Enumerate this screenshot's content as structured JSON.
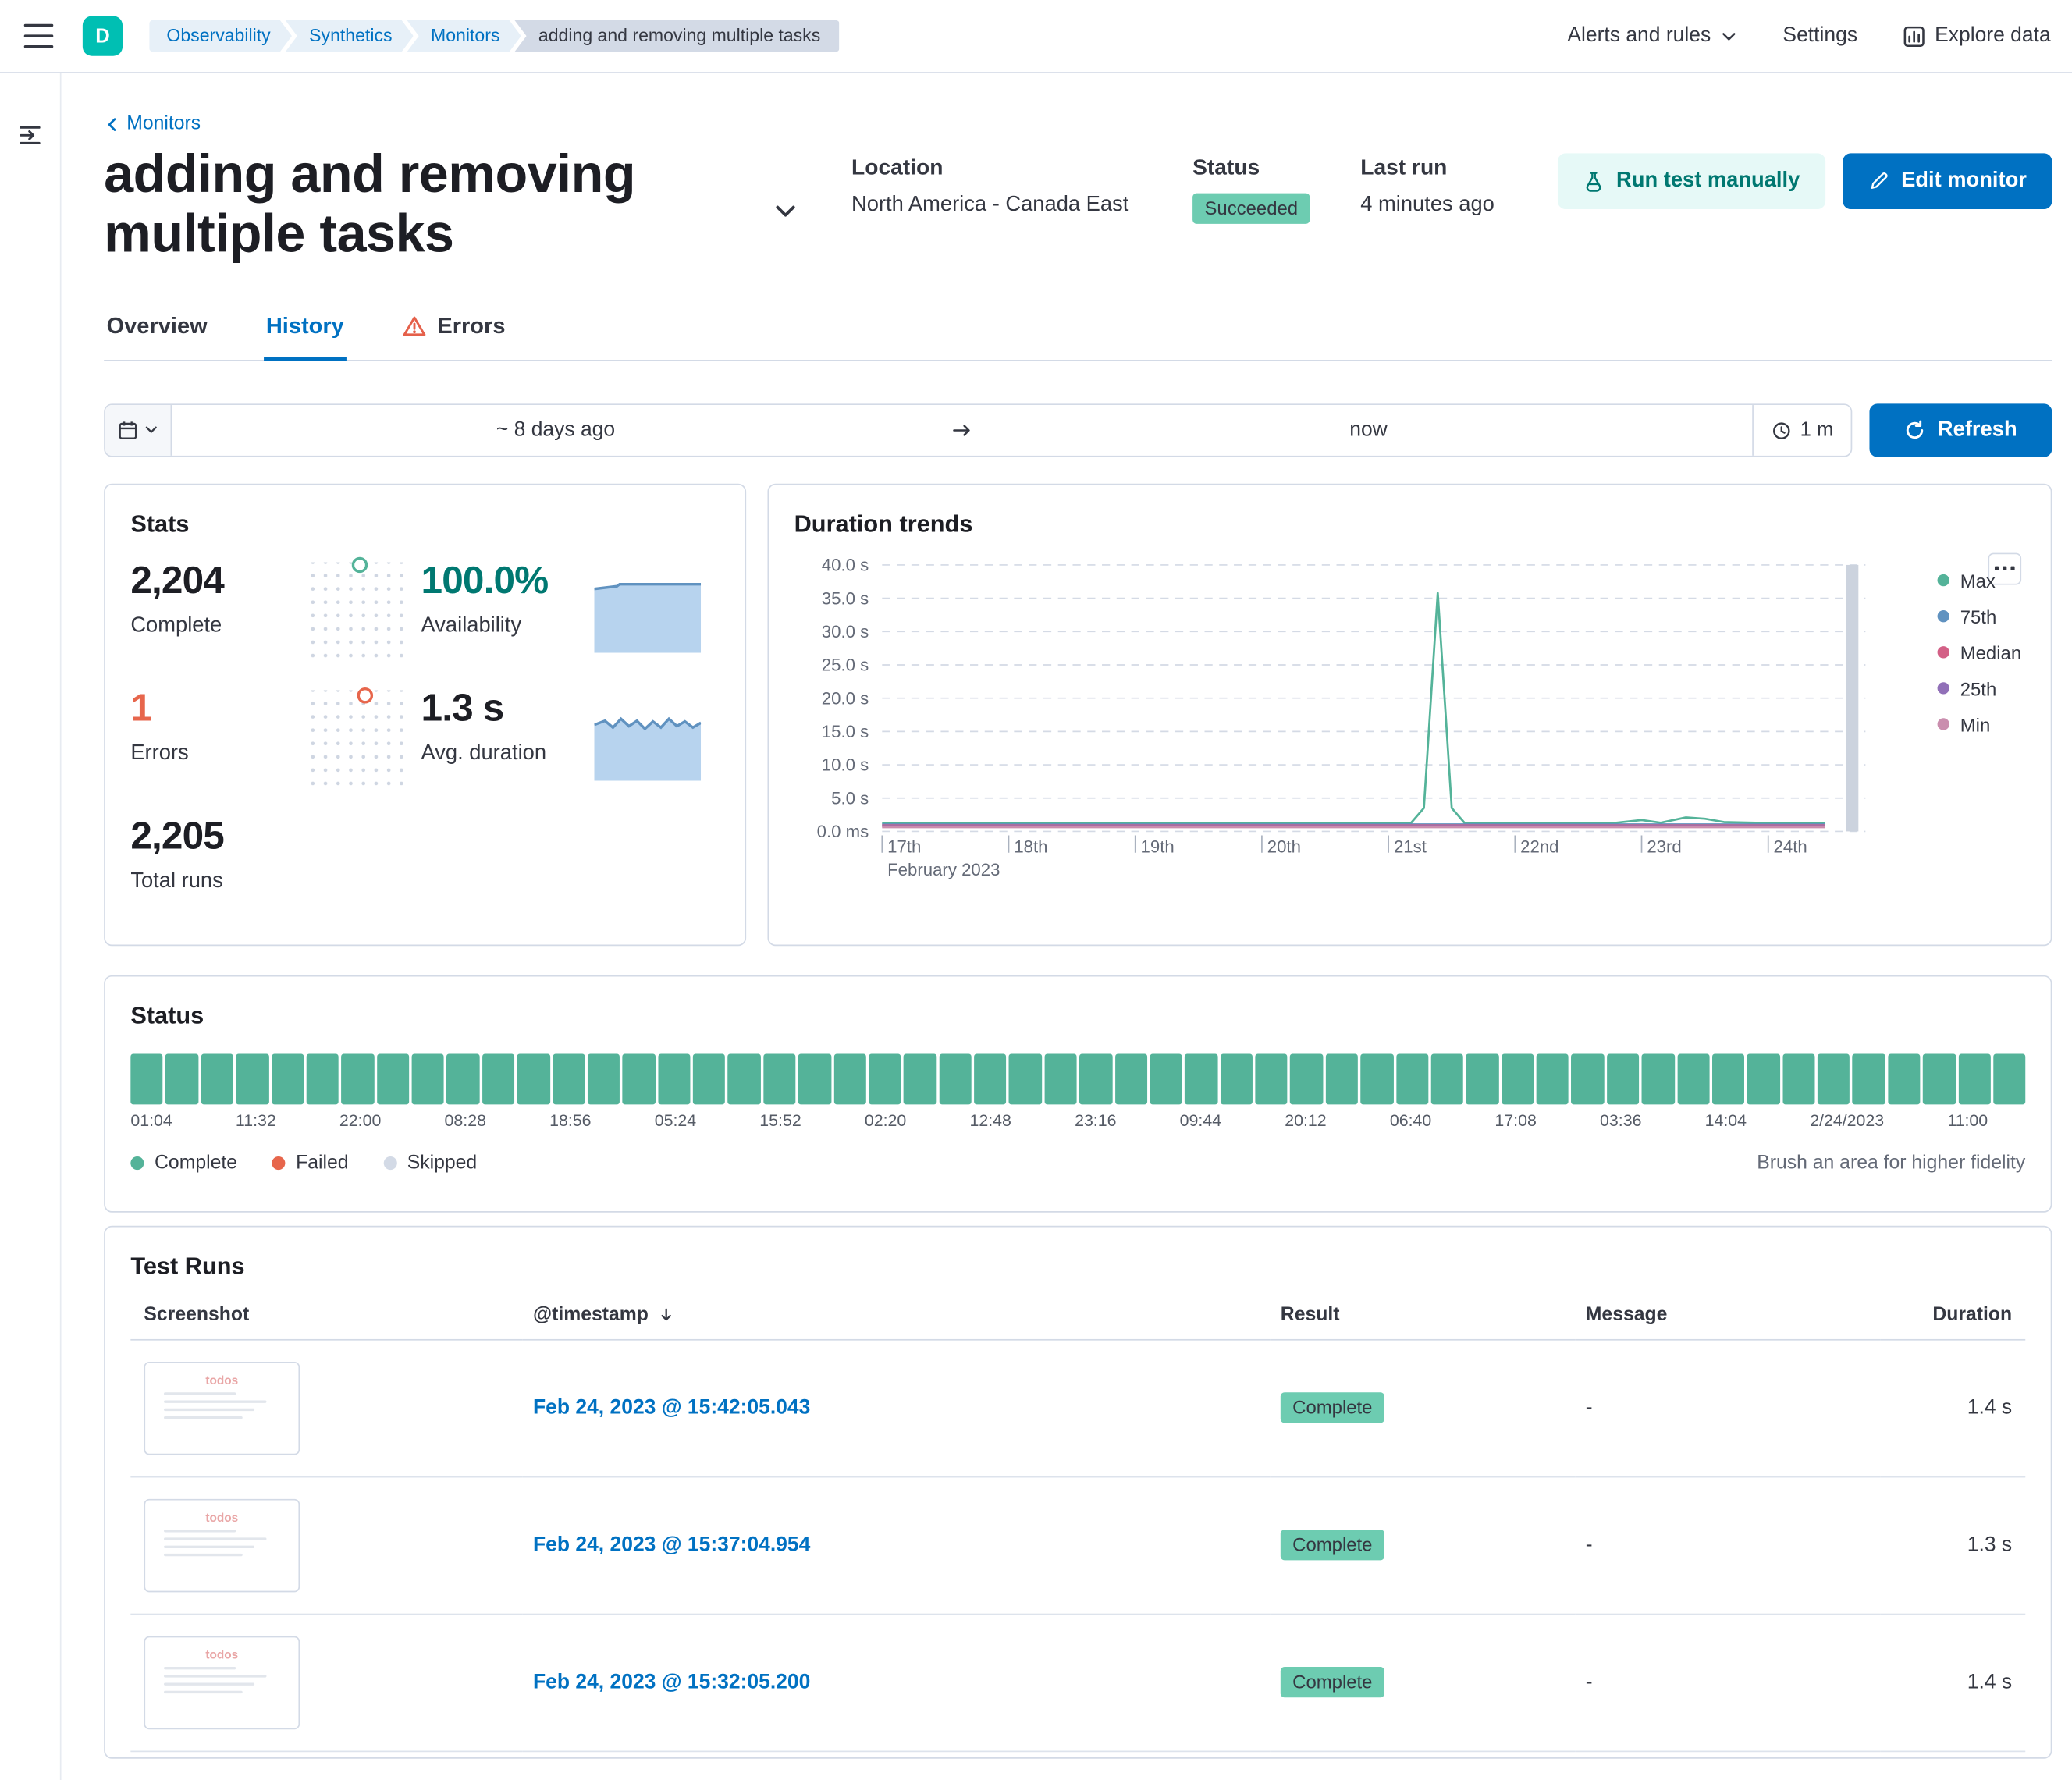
{
  "colors": {
    "primary": "#0071c2",
    "link": "#0071c2",
    "text": "#343741",
    "subdued": "#646a77",
    "border": "#d3dae6",
    "success_badge": "#6dccb1",
    "success_bar": "#54b399",
    "danger": "#e7664c",
    "accent_teal": "#00bfb3",
    "run_btn_bg": "#e6f9f7",
    "run_btn_text": "#007871",
    "availability_text": "#007871",
    "crumb_bg": "#e7f0f8",
    "crumb_last_bg": "#d3dae6",
    "spark_fill": "#b7d3ee",
    "spark_line": "#6092c0"
  },
  "header": {
    "avatar_initial": "D",
    "breadcrumbs": [
      "Observability",
      "Synthetics",
      "Monitors",
      "adding and removing multiple tasks"
    ],
    "alerts_menu": "Alerts and rules",
    "settings": "Settings",
    "explore_data": "Explore data"
  },
  "monitor": {
    "back_link": "Monitors",
    "title": "adding and removing multiple tasks",
    "location_label": "Location",
    "location_value": "North America - Canada East",
    "status_label": "Status",
    "status_value": "Succeeded",
    "last_run_label": "Last run",
    "last_run_value": "4 minutes ago",
    "run_test_button": "Run test manually",
    "edit_button": "Edit monitor"
  },
  "tabs": {
    "overview": "Overview",
    "history": "History",
    "errors": "Errors"
  },
  "datebar": {
    "start": "~ 8 days ago",
    "end": "now",
    "interval": "1 m",
    "refresh_button": "Refresh"
  },
  "stats": {
    "title": "Stats",
    "complete": {
      "value": "2,204",
      "label": "Complete"
    },
    "availability": {
      "value": "100.0%",
      "label": "Availability"
    },
    "errors": {
      "value": "1",
      "label": "Errors"
    },
    "avg_duration": {
      "value": "1.3 s",
      "label": "Avg. duration"
    },
    "total_runs": {
      "value": "2,205",
      "label": "Total runs"
    }
  },
  "chart_data": {
    "type": "line",
    "title": "Duration trends",
    "ylabel_ticks": [
      "40.0 s",
      "35.0 s",
      "30.0 s",
      "25.0 s",
      "20.0 s",
      "15.0 s",
      "10.0 s",
      "5.0 s",
      "0.0 ms"
    ],
    "ylim_seconds": [
      0,
      40
    ],
    "x_ticks": [
      "17th",
      "18th",
      "19th",
      "20th",
      "21st",
      "22nd",
      "23rd",
      "24th"
    ],
    "x_context": "February 2023",
    "grid": "dashed",
    "legend_position": "right",
    "now_marker_day": 7.66,
    "series": [
      {
        "name": "Max",
        "color": "#54b399",
        "points": [
          [
            0,
            1.2
          ],
          [
            0.3,
            1.3
          ],
          [
            0.6,
            1.2
          ],
          [
            0.9,
            1.3
          ],
          [
            1.2,
            1.25
          ],
          [
            1.5,
            1.2
          ],
          [
            1.8,
            1.3
          ],
          [
            2.1,
            1.2
          ],
          [
            2.4,
            1.3
          ],
          [
            2.7,
            1.25
          ],
          [
            3.0,
            1.2
          ],
          [
            3.3,
            1.3
          ],
          [
            3.6,
            1.2
          ],
          [
            3.9,
            1.3
          ],
          [
            4.18,
            1.3
          ],
          [
            4.28,
            3.5
          ],
          [
            4.39,
            35.8
          ],
          [
            4.5,
            3.5
          ],
          [
            4.6,
            1.3
          ],
          [
            4.9,
            1.25
          ],
          [
            5.2,
            1.3
          ],
          [
            5.5,
            1.2
          ],
          [
            5.8,
            1.3
          ],
          [
            6.0,
            1.7
          ],
          [
            6.15,
            1.3
          ],
          [
            6.35,
            2.1
          ],
          [
            6.5,
            1.9
          ],
          [
            6.65,
            1.4
          ],
          [
            6.9,
            1.3
          ],
          [
            7.2,
            1.25
          ],
          [
            7.45,
            1.3
          ]
        ]
      },
      {
        "name": "75th",
        "color": "#6092c0",
        "points": [
          [
            0,
            1.05
          ],
          [
            7.45,
            1.05
          ]
        ]
      },
      {
        "name": "Median",
        "color": "#d36086",
        "points": [
          [
            0,
            0.9
          ],
          [
            7.45,
            0.9
          ]
        ]
      },
      {
        "name": "25th",
        "color": "#9170b8",
        "points": [
          [
            0,
            0.78
          ],
          [
            7.45,
            0.78
          ]
        ]
      },
      {
        "name": "Min",
        "color": "#ca8eae",
        "points": [
          [
            0,
            0.65
          ],
          [
            7.45,
            0.65
          ]
        ]
      }
    ]
  },
  "status_panel": {
    "title": "Status",
    "bar_count": 54,
    "bar_status": "complete",
    "x_labels": [
      "01:04",
      "11:32",
      "22:00",
      "08:28",
      "18:56",
      "05:24",
      "15:52",
      "02:20",
      "12:48",
      "23:16",
      "09:44",
      "20:12",
      "06:40",
      "17:08",
      "03:36",
      "14:04",
      "2/24/2023",
      "11:00"
    ],
    "legend": [
      {
        "label": "Complete",
        "color": "#54b399"
      },
      {
        "label": "Failed",
        "color": "#e7664c"
      },
      {
        "label": "Skipped",
        "color": "#d3dae6"
      }
    ],
    "hint": "Brush an area for higher fidelity"
  },
  "test_runs": {
    "title": "Test Runs",
    "columns": [
      "Screenshot",
      "@timestamp",
      "Result",
      "Message",
      "Duration"
    ],
    "sorted_column": "@timestamp",
    "sort_direction": "desc",
    "rows": [
      {
        "thumbnail_label": "todos",
        "timestamp": "Feb 24, 2023 @ 15:42:05.043",
        "result": "Complete",
        "message": "-",
        "duration": "1.4 s"
      },
      {
        "thumbnail_label": "todos",
        "timestamp": "Feb 24, 2023 @ 15:37:04.954",
        "result": "Complete",
        "message": "-",
        "duration": "1.3 s"
      },
      {
        "thumbnail_label": "todos",
        "timestamp": "Feb 24, 2023 @ 15:32:05.200",
        "result": "Complete",
        "message": "-",
        "duration": "1.4 s"
      }
    ]
  }
}
